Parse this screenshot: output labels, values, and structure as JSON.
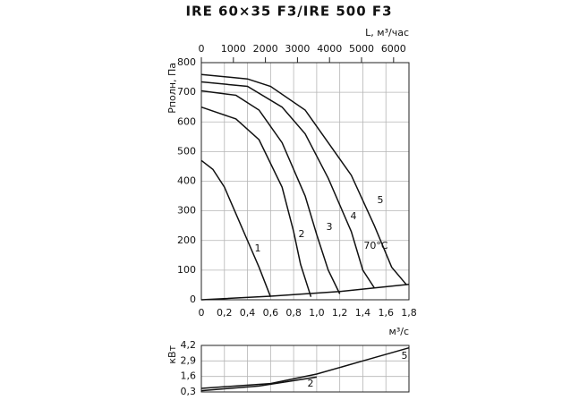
{
  "chart_data": [
    {
      "type": "line",
      "title": "IRE 60×35 F3/IRE 500 F3",
      "x_label": "м³/с",
      "y_label": "Pполн, Па",
      "x2_label": "L, м³/час",
      "x2lim": [
        0,
        6480
      ],
      "x2ticks": [
        0,
        1000,
        2000,
        3000,
        4000,
        5000,
        6000
      ],
      "xlim": [
        0,
        1.8
      ],
      "xticks": [
        0,
        {
          "value": 0.2,
          "label": "0,2"
        },
        {
          "value": 0.4,
          "label": "0,4"
        },
        {
          "value": 0.6,
          "label": "0,6"
        },
        {
          "value": 0.8,
          "label": "0,8"
        },
        {
          "value": 1.0,
          "label": "1,0"
        },
        {
          "value": 1.2,
          "label": "1,2"
        },
        {
          "value": 1.4,
          "label": "1,4"
        },
        {
          "value": 1.6,
          "label": "1,6"
        },
        {
          "value": 1.8,
          "label": "1,8"
        }
      ],
      "ylim": [
        0,
        800
      ],
      "yticks": [
        0,
        100,
        200,
        300,
        400,
        500,
        600,
        700,
        800
      ],
      "grid": true,
      "annotations": [
        "70°C"
      ],
      "series": [
        {
          "name": "1",
          "color": "#111111",
          "x": [
            0,
            0.1,
            0.2,
            0.3,
            0.4,
            0.5,
            0.6
          ],
          "values": [
            470,
            440,
            380,
            290,
            200,
            110,
            10
          ]
        },
        {
          "name": "2",
          "color": "#111111",
          "x": [
            0,
            0.3,
            0.5,
            0.7,
            0.8,
            0.86,
            0.95
          ],
          "values": [
            650,
            610,
            540,
            380,
            230,
            120,
            10
          ]
        },
        {
          "name": "3",
          "color": "#111111",
          "x": [
            0,
            0.3,
            0.5,
            0.7,
            0.9,
            1.0,
            1.1,
            1.2
          ],
          "values": [
            705,
            690,
            640,
            530,
            350,
            220,
            100,
            20
          ]
        },
        {
          "name": "4",
          "color": "#111111",
          "x": [
            0,
            0.4,
            0.7,
            0.9,
            1.1,
            1.3,
            1.4,
            1.5
          ],
          "values": [
            735,
            720,
            650,
            560,
            410,
            230,
            100,
            40
          ]
        },
        {
          "name": "5",
          "color": "#111111",
          "x": [
            0,
            0.4,
            0.6,
            0.9,
            1.1,
            1.3,
            1.5,
            1.65,
            1.78
          ],
          "values": [
            760,
            745,
            720,
            640,
            530,
            420,
            250,
            110,
            50
          ]
        },
        {
          "color": "#111111",
          "x": [
            0,
            0.6,
            1.2,
            1.8
          ],
          "values": [
            0,
            12,
            28,
            52
          ]
        }
      ]
    },
    {
      "type": "line",
      "y_label": "кВт",
      "xlim": [
        0,
        1.8
      ],
      "xticks": [
        0,
        0.2,
        0.4,
        0.6,
        0.8,
        1.0,
        1.2,
        1.4,
        1.6,
        1.8
      ],
      "ylim": [
        0.3,
        4.2
      ],
      "yticks": [
        {
          "value": 0.3,
          "label": "0,3"
        },
        {
          "value": 1.6,
          "label": "1,6"
        },
        {
          "value": 2.9,
          "label": "2,9"
        },
        {
          "value": 4.2,
          "label": "4,2"
        }
      ],
      "grid": true,
      "series": [
        {
          "name": "2",
          "color": "#111111",
          "x": [
            0,
            0.5,
            0.9,
            1.0
          ],
          "values": [
            0.4,
            0.8,
            1.4,
            1.55
          ]
        },
        {
          "name": "5",
          "color": "#111111",
          "x": [
            0,
            0.6,
            1.0,
            1.4,
            1.8
          ],
          "values": [
            0.6,
            1.0,
            1.8,
            2.9,
            4.0
          ]
        }
      ]
    }
  ]
}
